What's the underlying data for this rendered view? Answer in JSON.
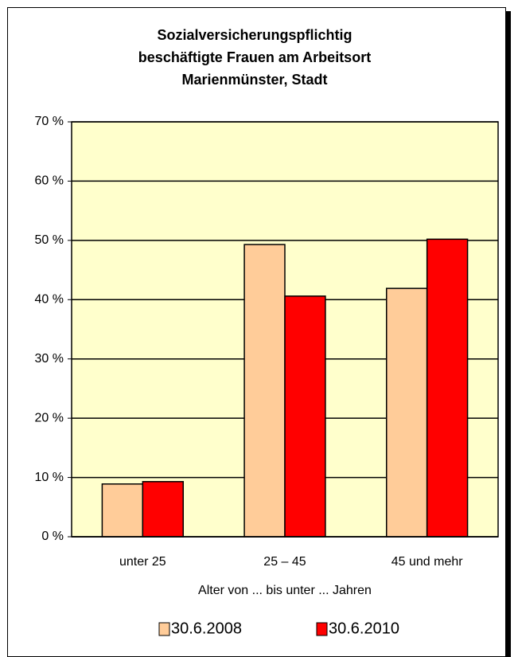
{
  "chart_data": {
    "type": "bar",
    "title": [
      "Sozialversicherungspflichtig",
      "beschäftigte Frauen am Arbeitsort",
      "Marienmünster, Stadt"
    ],
    "categories": [
      "unter 25",
      "25 – 45",
      "45 und mehr"
    ],
    "x_label": "Alter von ... bis unter ... Jahren",
    "series": [
      {
        "name": "30.6.2008",
        "color": "#ffcc99",
        "values": [
          8.9,
          49.3,
          41.9
        ]
      },
      {
        "name": "30.6.2010",
        "color": "#ff0000",
        "values": [
          9.3,
          40.6,
          50.2
        ]
      }
    ],
    "ylim": [
      0,
      70
    ],
    "yticks": [
      {
        "value": 0,
        "label": "0 %"
      },
      {
        "value": 10,
        "label": "10 %"
      },
      {
        "value": 20,
        "label": "20 %"
      },
      {
        "value": 30,
        "label": "30 %"
      },
      {
        "value": 40,
        "label": "40 %"
      },
      {
        "value": 50,
        "label": "50 %"
      },
      {
        "value": 60,
        "label": "60 %"
      },
      {
        "value": 70,
        "label": "70 %"
      }
    ],
    "grid": true,
    "legend": "bottom",
    "plot_background": "#ffffcc"
  }
}
